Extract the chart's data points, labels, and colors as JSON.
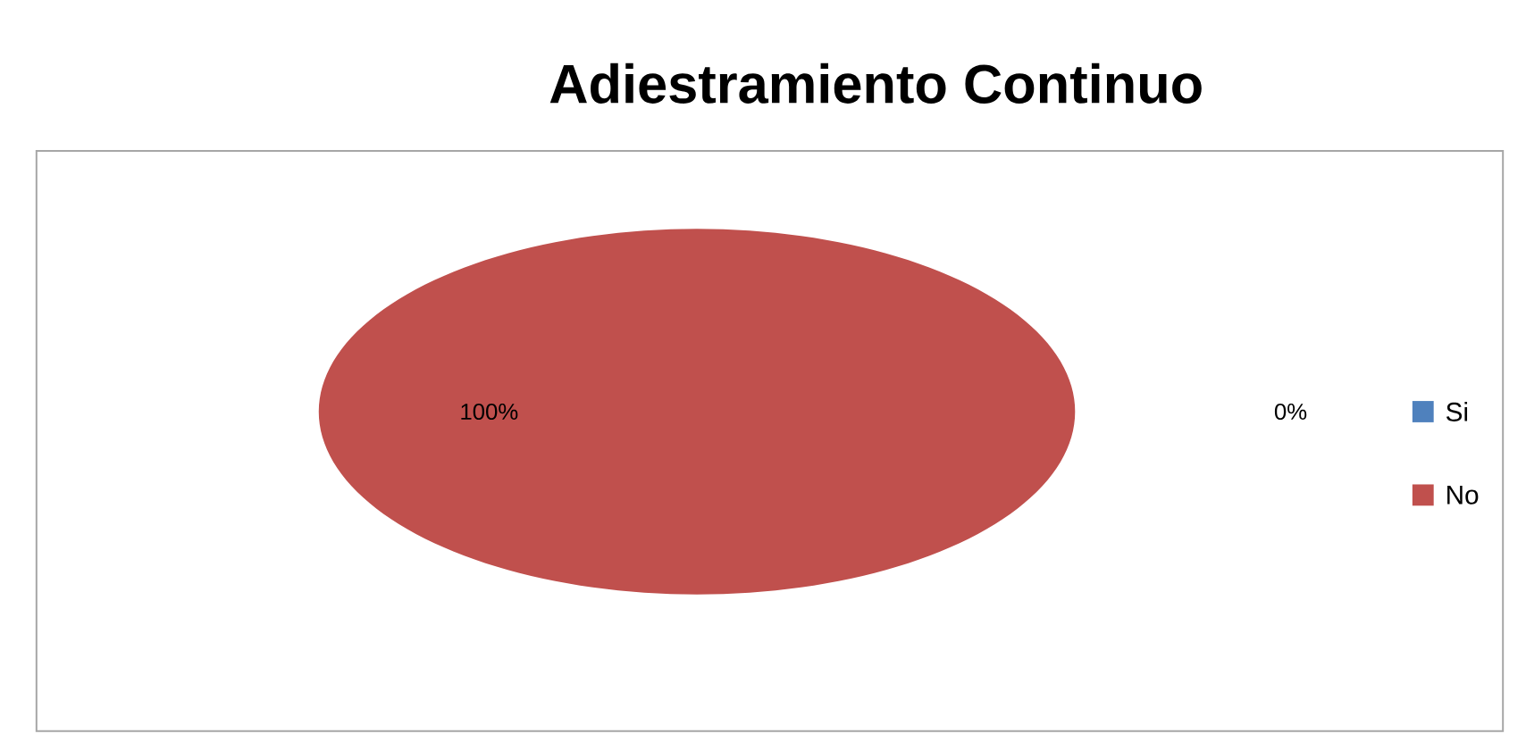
{
  "chart_data": {
    "type": "pie",
    "title": "Adiestramiento Continuo",
    "categories": [
      "Si",
      "No"
    ],
    "values": [
      0,
      100
    ],
    "colors": [
      "#4f81bd",
      "#c0504d"
    ],
    "value_labels": [
      "0%",
      "100%"
    ],
    "legend": "right"
  }
}
